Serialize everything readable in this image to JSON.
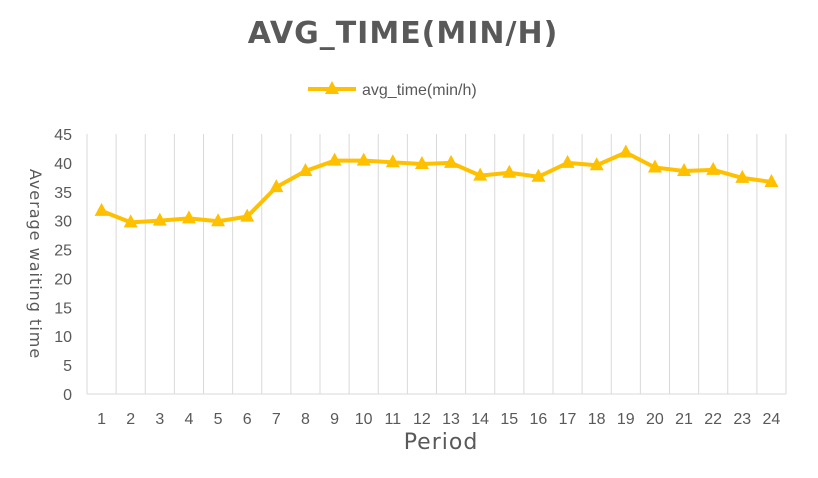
{
  "chart_data": {
    "type": "line",
    "title": "AVG_TIME(MIN/H)",
    "xlabel": "Period",
    "ylabel": "Average waiting time",
    "categories": [
      "1",
      "2",
      "3",
      "4",
      "5",
      "6",
      "7",
      "8",
      "9",
      "10",
      "11",
      "12",
      "13",
      "14",
      "15",
      "16",
      "17",
      "18",
      "19",
      "20",
      "21",
      "22",
      "23",
      "24"
    ],
    "series": [
      {
        "name": "avg_time(min/h)",
        "values": [
          31.7,
          29.7,
          30.0,
          30.4,
          29.9,
          30.7,
          35.8,
          38.6,
          40.4,
          40.4,
          40.1,
          39.8,
          40.0,
          37.8,
          38.3,
          37.6,
          40.0,
          39.6,
          41.8,
          39.2,
          38.6,
          38.8,
          37.4,
          36.7
        ]
      }
    ],
    "ylim": [
      0,
      45
    ],
    "yticks": [
      0,
      5,
      10,
      15,
      20,
      25,
      30,
      35,
      40,
      45
    ],
    "grid": "vertical",
    "legend_position": "top",
    "series_color": "#FFC000",
    "text_color": "#595959",
    "grid_color": "#D9D9D9"
  }
}
